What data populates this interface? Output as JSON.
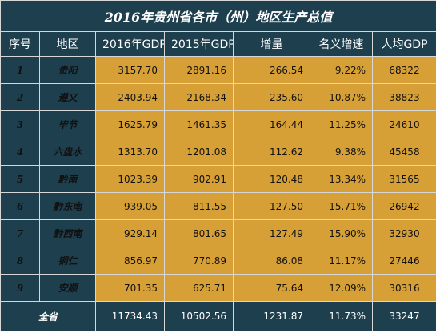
{
  "title": "2016年贵州省各市（州）地区生产总值",
  "columns": [
    "序号",
    "地区",
    "2016年GDP",
    "2015年GDP",
    "增量",
    "名义增速",
    "人均GDP"
  ],
  "rows": [
    {
      "index": "1",
      "region": "贵阳",
      "gdp2016": "3157.70",
      "gdp2015": "2891.16",
      "increase": "266.54",
      "growth": "9.22%",
      "per_capita": "68322"
    },
    {
      "index": "2",
      "region": "遵义",
      "gdp2016": "2403.94",
      "gdp2015": "2168.34",
      "increase": "235.60",
      "growth": "10.87%",
      "per_capita": "38823"
    },
    {
      "index": "3",
      "region": "毕节",
      "gdp2016": "1625.79",
      "gdp2015": "1461.35",
      "increase": "164.44",
      "growth": "11.25%",
      "per_capita": "24610"
    },
    {
      "index": "4",
      "region": "六盘水",
      "gdp2016": "1313.70",
      "gdp2015": "1201.08",
      "increase": "112.62",
      "growth": "9.38%",
      "per_capita": "45458"
    },
    {
      "index": "5",
      "region": "黔南",
      "gdp2016": "1023.39",
      "gdp2015": "902.91",
      "increase": "120.48",
      "growth": "13.34%",
      "per_capita": "31565"
    },
    {
      "index": "6",
      "region": "黔东南",
      "gdp2016": "939.05",
      "gdp2015": "811.55",
      "increase": "127.50",
      "growth": "15.71%",
      "per_capita": "26942"
    },
    {
      "index": "7",
      "region": "黔西南",
      "gdp2016": "929.14",
      "gdp2015": "801.65",
      "increase": "127.49",
      "growth": "15.90%",
      "per_capita": "32930"
    },
    {
      "index": "8",
      "region": "铜仁",
      "gdp2016": "856.97",
      "gdp2015": "770.89",
      "increase": "86.08",
      "growth": "11.17%",
      "per_capita": "27446"
    },
    {
      "index": "9",
      "region": "安顺",
      "gdp2016": "701.35",
      "gdp2015": "625.71",
      "increase": "75.64",
      "growth": "12.09%",
      "per_capita": "30316"
    }
  ],
  "total": {
    "label": "全省",
    "gdp2016": "11734.43",
    "gdp2015": "10502.56",
    "increase": "1231.87",
    "growth": "11.73%",
    "per_capita": "33247"
  },
  "colors": {
    "header_bg": "#1e3f4e",
    "cell_bg": "#d6a036",
    "text_light": "#ffffff"
  }
}
